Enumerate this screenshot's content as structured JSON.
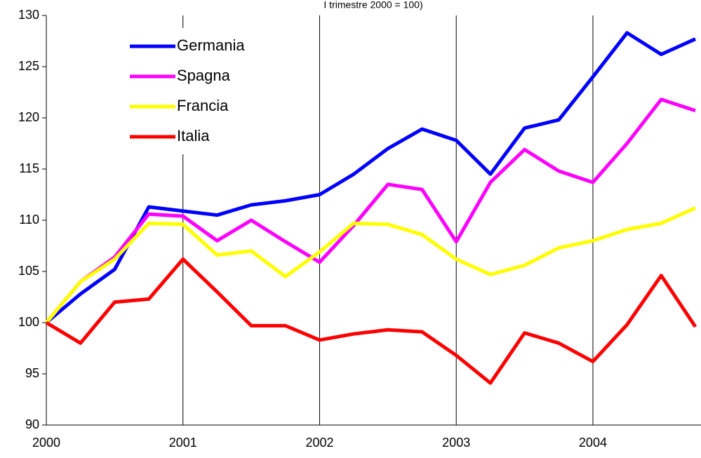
{
  "chart_data": {
    "type": "line",
    "title": "I trimestre 2000 = 100)",
    "categories": [
      "2000",
      null,
      null,
      null,
      "2001",
      null,
      null,
      null,
      "2002",
      null,
      null,
      null,
      "2003",
      null,
      null,
      null,
      "2004",
      null,
      null,
      null
    ],
    "series": [
      {
        "name": "Germania",
        "color": "#0000ff",
        "values": [
          100,
          102.8,
          105.2,
          111.3,
          110.9,
          110.5,
          111.5,
          111.9,
          112.5,
          114.5,
          117.0,
          118.9,
          117.8,
          114.5,
          119.0,
          119.8,
          124.0,
          128.3,
          126.2,
          127.7
        ]
      },
      {
        "name": "Spagna",
        "color": "#ff00ff",
        "values": [
          100,
          104.0,
          106.4,
          110.6,
          110.4,
          108.0,
          110.0,
          107.9,
          105.9,
          109.5,
          113.5,
          113.0,
          107.9,
          113.7,
          116.9,
          114.8,
          113.7,
          117.5,
          121.8,
          120.7
        ]
      },
      {
        "name": "Francia",
        "color": "#ffff00",
        "values": [
          100,
          104.0,
          106.2,
          109.7,
          109.6,
          106.6,
          107.0,
          104.5,
          106.9,
          109.7,
          109.6,
          108.6,
          106.2,
          104.7,
          105.6,
          107.3,
          108.0,
          109.1,
          109.7,
          111.2
        ]
      },
      {
        "name": "Italia",
        "color": "#ff0000",
        "values": [
          100,
          98.0,
          102.0,
          102.3,
          106.2,
          103.0,
          99.7,
          99.7,
          98.3,
          98.9,
          99.3,
          99.1,
          96.8,
          94.1,
          99.0,
          98.0,
          96.2,
          99.8,
          104.6,
          99.6
        ]
      }
    ],
    "ylim": [
      90,
      130
    ],
    "yticks": [
      90,
      95,
      100,
      105,
      110,
      115,
      120,
      125,
      130
    ],
    "grid": true
  }
}
